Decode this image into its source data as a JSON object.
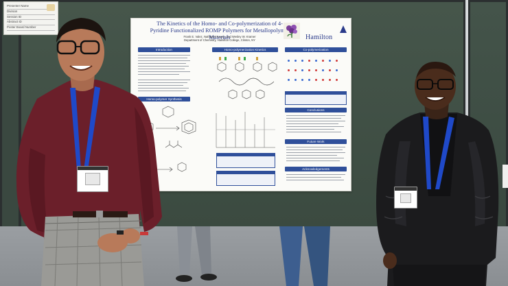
{
  "placard": {
    "rows": [
      "Presenter Name",
      "Division",
      "Session ID",
      "Abstract ID",
      "Poster Board Number"
    ]
  },
  "poster": {
    "title": "The Kinetics of the Homo- and Co-polymerization of 4-Pyridine Functionalized ROMP Polymers for Metallopolymer Materials",
    "authors": "Frank E. Valez, Nathaniel Keyes, and Wesley W. Kramer",
    "affiliation": "Department of Chemistry, Hamilton College, Clinton, NY",
    "institution": "Hamilton",
    "sections": {
      "introduction": "Introduction",
      "homo_kinetics": "Homo-polymerization Kinetics",
      "copolymerization": "Co-polymerization",
      "homo_synthesis": "Homo-polymer Synthesis",
      "conclusions": "Conclusions",
      "future_work": "Future Work",
      "acknowledgements": "Acknowledgements"
    }
  },
  "colors": {
    "poster_blue": "#2f4f9a",
    "shirt_maroon": "#6b1f2a",
    "jacket_black": "#1b1b1d",
    "lanyard_blue": "#1f49c8",
    "board_green": "#3f4f44"
  }
}
